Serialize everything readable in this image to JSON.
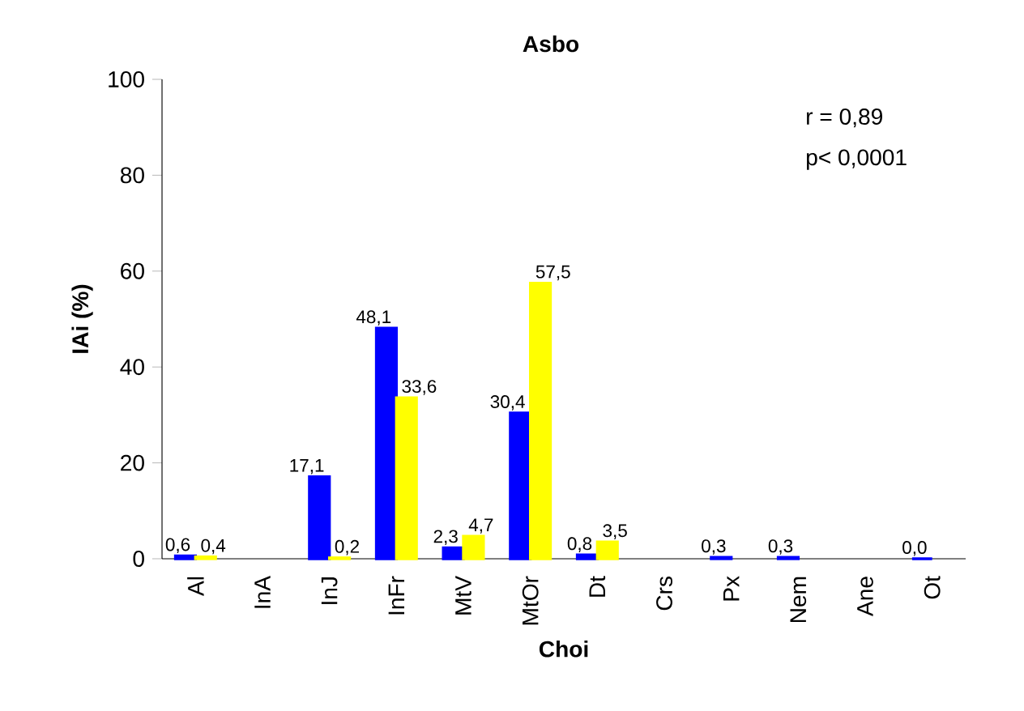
{
  "chart_data": {
    "type": "bar",
    "title": "Asbo",
    "xlabel": "Choi",
    "ylabel": "IAi (%)",
    "categories": [
      "Al",
      "InA",
      "InJ",
      "InFr",
      "MtV",
      "MtOr",
      "Dt",
      "Crs",
      "Px",
      "Nem",
      "Ane",
      "Ot"
    ],
    "series": [
      {
        "color": "#0000ff",
        "values": [
          0.6,
          null,
          17.1,
          48.1,
          2.3,
          30.4,
          0.8,
          null,
          0.3,
          0.3,
          null,
          0.0
        ],
        "value_labels": [
          "0,6",
          null,
          "17,1",
          "48,1",
          "2,3",
          "30,4",
          "0,8",
          null,
          "0,3",
          "0,3",
          null,
          "0,0"
        ]
      },
      {
        "color": "#ffff00",
        "values": [
          0.4,
          null,
          0.2,
          33.6,
          4.7,
          57.5,
          3.5,
          null,
          null,
          null,
          null,
          null
        ],
        "value_labels": [
          "0,4",
          null,
          "0,2",
          "33,6",
          "4,7",
          "57,5",
          "3,5",
          null,
          null,
          null,
          null,
          null
        ]
      }
    ],
    "ylim": [
      0,
      100
    ],
    "yticks": [
      0,
      20,
      40,
      60,
      80,
      100
    ],
    "annotations": [
      "r = 0,89",
      "p< 0,0001"
    ]
  }
}
